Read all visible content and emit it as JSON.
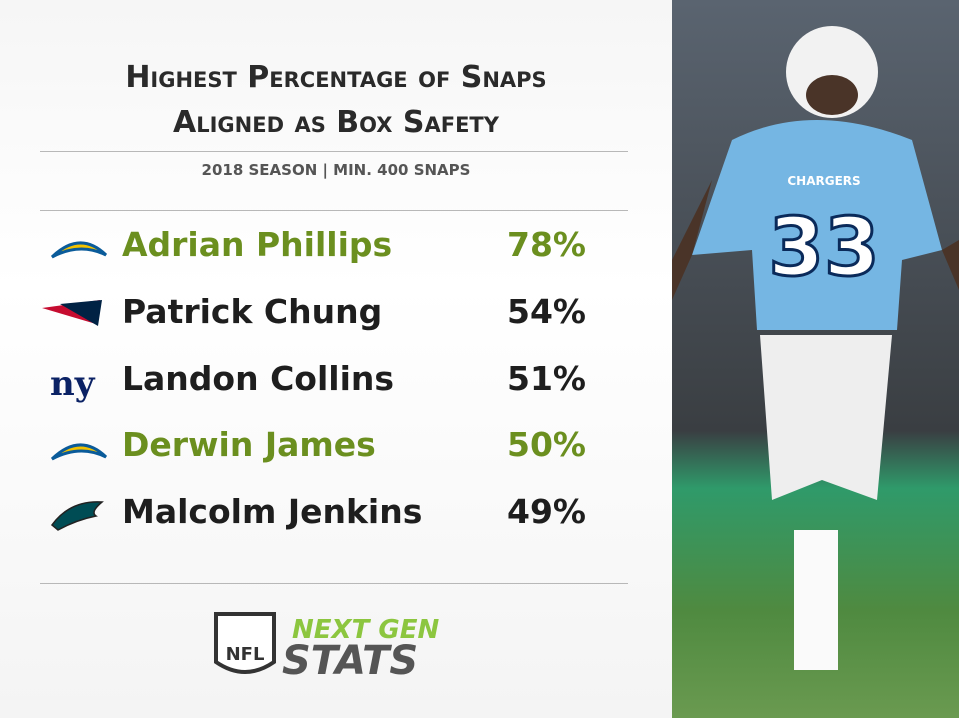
{
  "header": {
    "title_lines": [
      "Highest Percentage of Snaps",
      "Aligned as Box Safety"
    ],
    "subtitle": "2018 SEASON | MIN. 400 SNAPS"
  },
  "rows": [
    {
      "name": "Adrian Phillips",
      "value": "78%",
      "color": "#6b8f1f"
    },
    {
      "name": "Patrick Chung",
      "value": "54%",
      "color": "#1e1e1e"
    },
    {
      "name": "Landon Collins",
      "value": "51%",
      "color": "#1e1e1e"
    },
    {
      "name": "Derwin James",
      "value": "50%",
      "color": "#6b8f1f"
    },
    {
      "name": "Malcolm Jenkins",
      "value": "49%",
      "color": "#1e1e1e"
    }
  ],
  "footer": {
    "league": "NFL",
    "brand_top": "NEXT GEN",
    "brand_bottom": "STATS"
  },
  "photo": {
    "jersey_team": "CHARGERS",
    "jersey_number": "33"
  }
}
